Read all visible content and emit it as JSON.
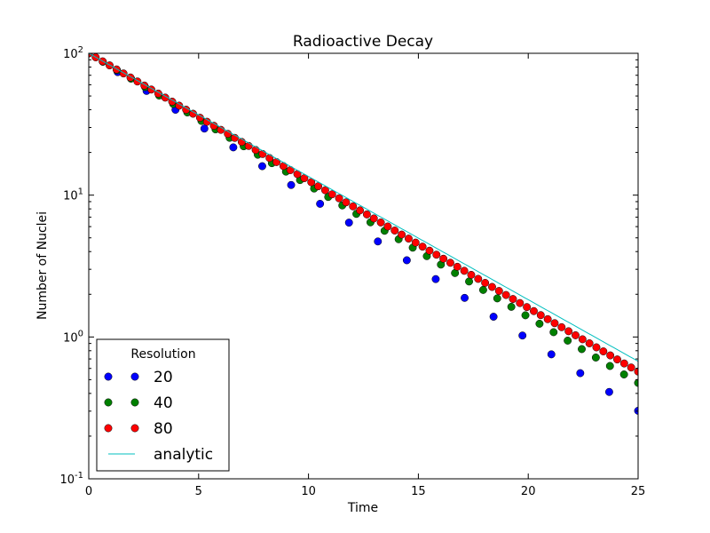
{
  "chart_data": {
    "type": "scatter",
    "title": "Radioactive Decay",
    "xlabel": "Time",
    "ylabel": "Number of Nuclei",
    "xlim": [
      0,
      25
    ],
    "ylim": [
      0.1,
      100
    ],
    "yscale": "log",
    "grid": false,
    "x_ticks": [
      0,
      5,
      10,
      15,
      20,
      25
    ],
    "x_tick_labels": [
      "0",
      "5",
      "10",
      "15",
      "20",
      "25"
    ],
    "y_ticks": [
      0.1,
      1,
      10,
      100
    ],
    "y_tick_labels": [
      {
        "base": "10",
        "exp": "-1"
      },
      {
        "base": "10",
        "exp": "0"
      },
      {
        "base": "10",
        "exp": "1"
      },
      {
        "base": "10",
        "exp": "2"
      }
    ],
    "legend": {
      "title": "Resolution",
      "placement": "lower-left"
    },
    "series": [
      {
        "name": "20",
        "style": "markers",
        "color": "#0000ff",
        "x_start": 0,
        "x_end": 25,
        "points": 20,
        "y_start": 100,
        "decay_per_step": 0.7368
      },
      {
        "name": "40",
        "style": "markers",
        "color": "#008000",
        "x_start": 0,
        "x_end": 25,
        "points": 40,
        "y_start": 100,
        "decay_per_step": 0.8718
      },
      {
        "name": "80",
        "style": "markers",
        "color": "#ff0000",
        "x_start": 0,
        "x_end": 25,
        "points": 80,
        "y_start": 100,
        "decay_per_step": 0.9367
      },
      {
        "name": "analytic",
        "style": "line",
        "color": "#00bfbf",
        "x_start": 0,
        "x_end": 25,
        "y_start": 100,
        "decay_rate": 0.2
      }
    ]
  }
}
